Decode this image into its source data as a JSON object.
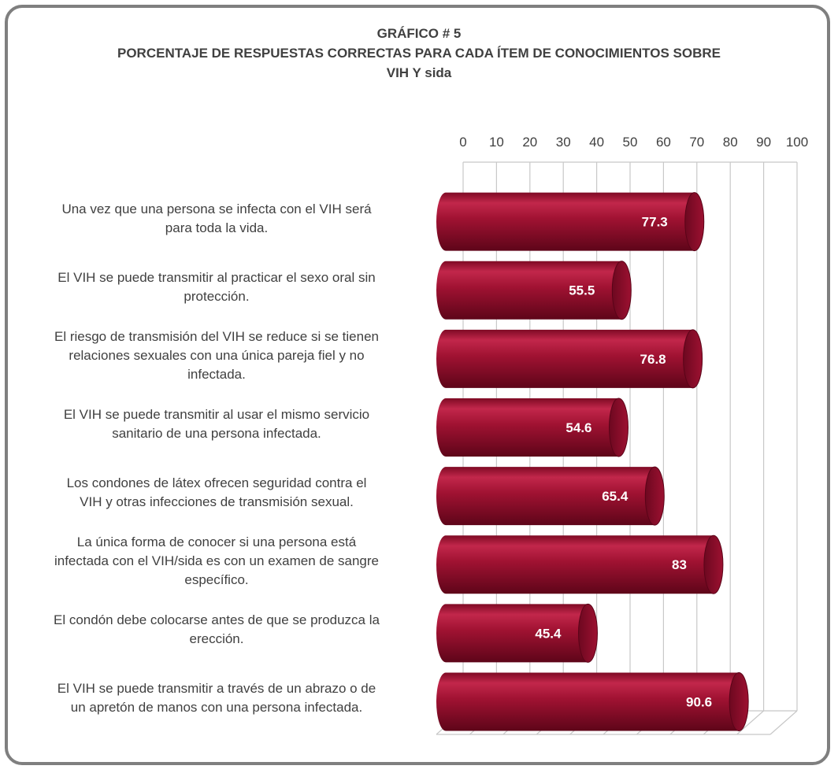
{
  "chart_data": {
    "type": "bar",
    "orientation": "horizontal",
    "title_lines": [
      "GRÁFICO # 5",
      "PORCENTAJE DE RESPUESTAS CORRECTAS PARA CADA ÍTEM DE CONOCIMIENTOS SOBRE",
      "VIH Y sida"
    ],
    "xlim": [
      0,
      100
    ],
    "ticks": [
      0,
      10,
      20,
      30,
      40,
      50,
      60,
      70,
      80,
      90,
      100
    ],
    "tick_labels": [
      "0",
      "10",
      "20",
      "30",
      "40",
      "50",
      "60",
      "70",
      "80",
      "90",
      "100"
    ],
    "axis_position": "top",
    "grid": true,
    "bar_color": "#9b0f2f",
    "categories": [
      [
        "Una vez que una persona se infecta con el VIH será",
        "para toda la vida."
      ],
      [
        "El VIH se puede transmitir al practicar el sexo oral sin",
        "protección."
      ],
      [
        "El riesgo de transmisión del VIH se reduce si se tienen",
        "relaciones sexuales con una única pareja fiel y no",
        "infectada."
      ],
      [
        "El VIH se puede transmitir al usar el mismo servicio",
        "sanitario de una persona infectada."
      ],
      [
        "Los condones de látex ofrecen seguridad contra el",
        "VIH y otras infecciones de transmisión sexual."
      ],
      [
        "La única forma de conocer si una persona está",
        "infectada con el VIH/sida es con un examen de sangre",
        "específico."
      ],
      [
        "El condón debe colocarse antes de que se produzca la",
        "erección."
      ],
      [
        "El VIH se puede transmitir a través de un abrazo o de",
        "un apretón de manos con una persona infectada."
      ]
    ],
    "values": [
      77.3,
      55.5,
      76.8,
      54.6,
      65.4,
      83,
      45.4,
      90.6
    ],
    "value_labels": [
      "77.3",
      "55.5",
      "76.8",
      "54.6",
      "65.4",
      "83",
      "45.4",
      "90.6"
    ]
  }
}
